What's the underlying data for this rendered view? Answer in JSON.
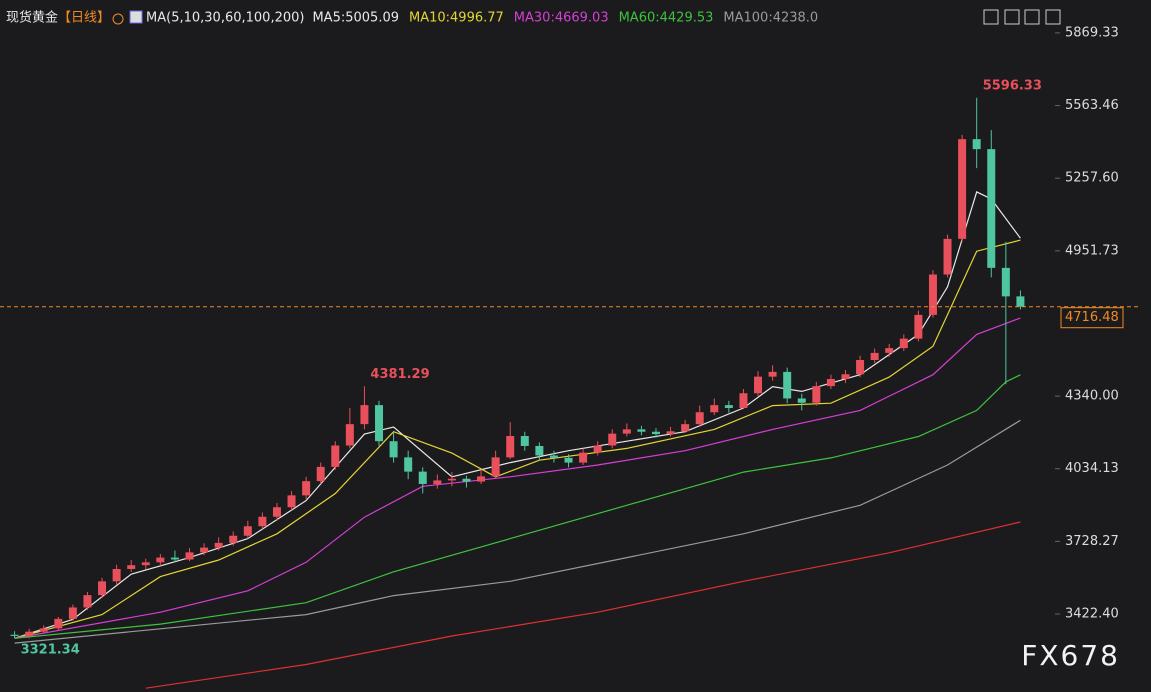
{
  "header": {
    "instrument": "现货黄金",
    "period": "【日线】",
    "ma_title": "MA(5,10,30,60,100,200)"
  },
  "watermark": "FX678",
  "chart_data": {
    "type": "candlestick",
    "up_color": "#e8505b",
    "down_color": "#4fc5a0",
    "ylim": [
      3094,
      6008
    ],
    "yticks": [
      {
        "value": 3422.4,
        "label": "3422.40"
      },
      3728.27,
      4034.13,
      {
        "value": 4340,
        "label": "4340.00"
      },
      4951.73,
      {
        "value": 5257.6,
        "label": "5257.60"
      },
      5563.46,
      5869.33
    ],
    "ohlc": [
      [
        3335,
        3350,
        3321.34,
        3330
      ],
      [
        3330,
        3360,
        3320,
        3348
      ],
      [
        3348,
        3375,
        3340,
        3362
      ],
      [
        3362,
        3410,
        3355,
        3402
      ],
      [
        3402,
        3462,
        3395,
        3450
      ],
      [
        3450,
        3515,
        3440,
        3502
      ],
      [
        3502,
        3575,
        3490,
        3560
      ],
      [
        3560,
        3630,
        3545,
        3612
      ],
      [
        3612,
        3650,
        3600,
        3628
      ],
      [
        3628,
        3655,
        3610,
        3640
      ],
      [
        3640,
        3675,
        3625,
        3660
      ],
      [
        3660,
        3690,
        3640,
        3652
      ],
      [
        3652,
        3700,
        3645,
        3682
      ],
      [
        3682,
        3720,
        3670,
        3702
      ],
      [
        3702,
        3745,
        3690,
        3722
      ],
      [
        3722,
        3770,
        3710,
        3752
      ],
      [
        3752,
        3815,
        3740,
        3792
      ],
      [
        3792,
        3850,
        3780,
        3832
      ],
      [
        3832,
        3890,
        3815,
        3872
      ],
      [
        3872,
        3940,
        3860,
        3922
      ],
      [
        3922,
        4000,
        3905,
        3982
      ],
      [
        3982,
        4060,
        3970,
        4042
      ],
      [
        4042,
        4150,
        4030,
        4132
      ],
      [
        4132,
        4290,
        4120,
        4222
      ],
      [
        4222,
        4381.29,
        4200,
        4302
      ],
      [
        4302,
        4320,
        4130,
        4150
      ],
      [
        4150,
        4190,
        4060,
        4082
      ],
      [
        4082,
        4110,
        3990,
        4022
      ],
      [
        4022,
        4040,
        3930,
        3970
      ],
      [
        3970,
        4010,
        3950,
        3985
      ],
      [
        3985,
        4020,
        3960,
        3992
      ],
      [
        3992,
        4005,
        3955,
        3980
      ],
      [
        3980,
        4030,
        3970,
        4002
      ],
      [
        4002,
        4110,
        3995,
        4082
      ],
      [
        4082,
        4230,
        4075,
        4172
      ],
      [
        4172,
        4190,
        4110,
        4130
      ],
      [
        4130,
        4145,
        4070,
        4090
      ],
      [
        4090,
        4110,
        4060,
        4080
      ],
      [
        4080,
        4095,
        4040,
        4060
      ],
      [
        4060,
        4120,
        4050,
        4102
      ],
      [
        4102,
        4150,
        4090,
        4132
      ],
      [
        4132,
        4200,
        4120,
        4182
      ],
      [
        4182,
        4225,
        4170,
        4200
      ],
      [
        4200,
        4215,
        4175,
        4190
      ],
      [
        4190,
        4205,
        4165,
        4180
      ],
      [
        4180,
        4210,
        4170,
        4192
      ],
      [
        4192,
        4240,
        4185,
        4222
      ],
      [
        4222,
        4300,
        4210,
        4272
      ],
      [
        4272,
        4330,
        4260,
        4302
      ],
      [
        4302,
        4320,
        4270,
        4290
      ],
      [
        4290,
        4370,
        4285,
        4352
      ],
      [
        4352,
        4445,
        4340,
        4422
      ],
      [
        4422,
        4470,
        4405,
        4442
      ],
      [
        4442,
        4460,
        4310,
        4330
      ],
      [
        4330,
        4350,
        4280,
        4312
      ],
      [
        4312,
        4400,
        4300,
        4382
      ],
      [
        4382,
        4430,
        4370,
        4412
      ],
      [
        4412,
        4450,
        4395,
        4432
      ],
      [
        4432,
        4510,
        4420,
        4492
      ],
      [
        4492,
        4540,
        4480,
        4522
      ],
      [
        4522,
        4560,
        4505,
        4542
      ],
      [
        4542,
        4600,
        4530,
        4582
      ],
      [
        4582,
        4700,
        4570,
        4682
      ],
      [
        4682,
        4870,
        4670,
        4852
      ],
      [
        4852,
        5020,
        4840,
        5002
      ],
      [
        5002,
        5440,
        4990,
        5422
      ],
      [
        5422,
        5596.33,
        5300,
        5380
      ],
      [
        5380,
        5460,
        4840,
        4880
      ],
      [
        4880,
        4990,
        4390,
        4760
      ],
      [
        4760,
        4785,
        4705,
        4716.48
      ]
    ],
    "series": [
      {
        "name": "MA5:5005.09",
        "color": "#e8e8e8",
        "x": [
          0,
          4,
          8,
          12,
          16,
          20,
          24,
          26,
          30,
          34,
          38,
          42,
          46,
          50,
          52,
          54,
          58,
          62,
          64,
          66,
          67,
          69
        ],
        "values": [
          3320,
          3400,
          3590,
          3660,
          3740,
          3900,
          4180,
          4210,
          4000,
          4060,
          4110,
          4150,
          4190,
          4290,
          4380,
          4360,
          4430,
          4600,
          4800,
          5200,
          5170,
          5005.09
        ]
      },
      {
        "name": "MA10:4996.77",
        "color": "#e3d535",
        "x": [
          0,
          6,
          10,
          14,
          18,
          22,
          26,
          30,
          33,
          36,
          42,
          48,
          52,
          56,
          60,
          63,
          66,
          69
        ],
        "values": [
          3320,
          3420,
          3580,
          3650,
          3760,
          3930,
          4190,
          4100,
          4000,
          4070,
          4120,
          4200,
          4300,
          4310,
          4420,
          4550,
          4950,
          4996.77
        ]
      },
      {
        "name": "MA30:4669.03",
        "color": "#d63fd6",
        "x": [
          0,
          10,
          16,
          20,
          24,
          28,
          34,
          40,
          46,
          52,
          58,
          63,
          66,
          69
        ],
        "values": [
          3320,
          3430,
          3520,
          3640,
          3830,
          3960,
          4000,
          4050,
          4110,
          4200,
          4280,
          4430,
          4600,
          4669.03
        ]
      },
      {
        "name": "MA60:4429.53",
        "color": "#3ec23e",
        "x": [
          0,
          10,
          20,
          26,
          34,
          42,
          50,
          56,
          62,
          66,
          68,
          69
        ],
        "values": [
          3320,
          3380,
          3470,
          3600,
          3740,
          3880,
          4020,
          4080,
          4170,
          4280,
          4400,
          4429.53
        ]
      },
      {
        "name": "MA100:4238.0",
        "color": "#9a9a9a",
        "x": [
          0,
          10,
          20,
          26,
          34,
          42,
          50,
          58,
          64,
          69
        ],
        "values": [
          3300,
          3360,
          3420,
          3500,
          3560,
          3660,
          3760,
          3880,
          4050,
          4238.0
        ]
      },
      {
        "color": "#e03030",
        "x": [
          9,
          20,
          30,
          40,
          50,
          60,
          69
        ],
        "values": [
          3110,
          3210,
          3330,
          3430,
          3560,
          3680,
          3810
        ]
      }
    ]
  }
}
